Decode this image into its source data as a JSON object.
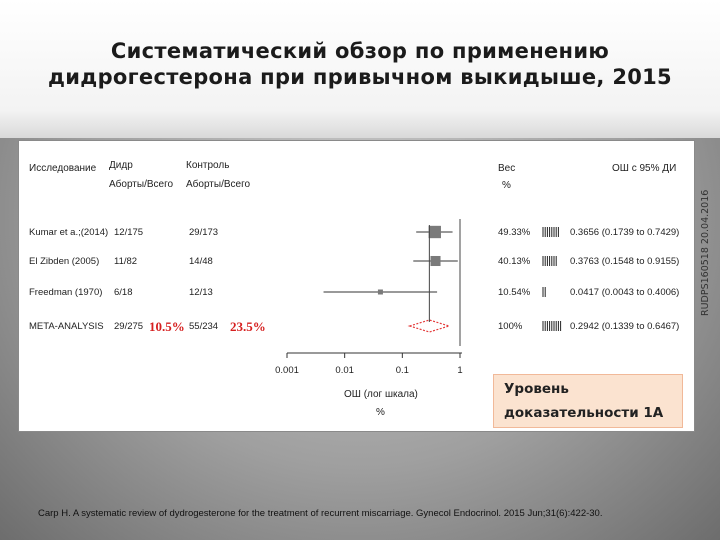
{
  "slide": {
    "title_line1": "Систематический обзор по применению",
    "title_line2": "дидрогестерона при привычном выкидыше, 2015",
    "watermark": "RUDPS160518 20.04.2016",
    "evidence_line1": "Уровень",
    "evidence_line2": "доказательности 1А",
    "citation": "Carp H. A systematic review of dydrogesterone for the treatment of recurrent miscarriage. Gynecol Endocrinol. 2015 Jun;31(6):422-30."
  },
  "headers": {
    "study": "Исследование",
    "dydro_1": "Дидр",
    "dydro_2": "Аборты/Всего",
    "control_1": "Контроль",
    "control_2": "Аборты/Всего",
    "weight_1": "Вес",
    "weight_2": "%",
    "or_ci": "ОШ с 95% ДИ"
  },
  "chart_data": {
    "type": "forest",
    "x_scale": "log",
    "x_ticks": [
      {
        "value": 0.001,
        "label": "0.001"
      },
      {
        "value": 0.01,
        "label": "0.01"
      },
      {
        "value": 0.1,
        "label": "0.1"
      },
      {
        "value": 1,
        "label": "1"
      }
    ],
    "xlabel_1": "ОШ (лог шкала)",
    "xlabel_2": "%",
    "studies": [
      {
        "name": "Kumar et a.;(2014)",
        "dydro": "12/175",
        "control": "29/173",
        "weight": "49.33%",
        "or_text": "0.3656 (0.1739 to 0.7429)",
        "or": 0.3656,
        "lo": 0.1739,
        "hi": 0.7429
      },
      {
        "name": "El Zibden (2005)",
        "dydro": "11/82",
        "control": "14/48",
        "weight": "40.13%",
        "or_text": "0.3763 (0.1548 to 0.9155)",
        "or": 0.3763,
        "lo": 0.1548,
        "hi": 0.9155
      },
      {
        "name": "Freedman (1970)",
        "dydro": "6/18",
        "control": "12/13",
        "weight": "10.54%",
        "or_text": "0.0417 (0.0043 to 0.4006)",
        "or": 0.0417,
        "lo": 0.0043,
        "hi": 0.4006
      }
    ],
    "meta": {
      "name": "META-ANALYSIS",
      "dydro": "29/275",
      "control": "55/234",
      "weight": "100%",
      "or_text": "0.2942 (0.1339 to 0.6467)",
      "or": 0.2942,
      "lo": 0.1339,
      "hi": 0.6467,
      "dydro_pct": "10.5%",
      "control_pct": "23.5%"
    }
  }
}
